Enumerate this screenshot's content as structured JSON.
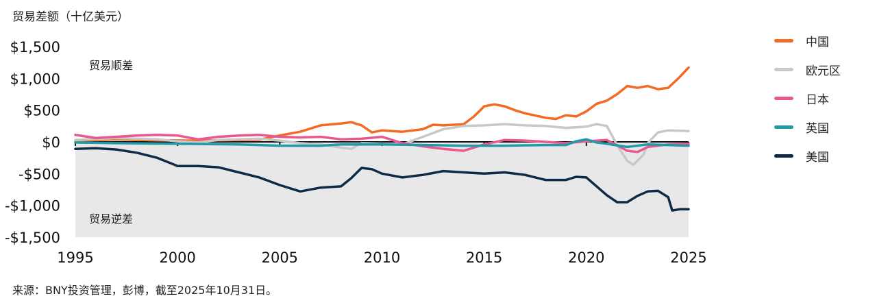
{
  "header": {
    "title": "贸易差额（十亿美元）"
  },
  "footer": {
    "source": "来源：BNY投资管理，彭博，截至2025年10月31日。"
  },
  "chart_data": {
    "type": "line",
    "title": "贸易差额（十亿美元）",
    "xlabel": "",
    "ylabel": "",
    "xlim": [
      1995,
      2025
    ],
    "ylim": [
      -1500,
      1500
    ],
    "x_ticks": [
      "1995",
      "2000",
      "2005",
      "2010",
      "2015",
      "2020",
      "2025"
    ],
    "y_ticks": [
      {
        "value": 1500,
        "label": "$1,500"
      },
      {
        "value": 1000,
        "label": "$1,000"
      },
      {
        "value": 500,
        "label": "$500"
      },
      {
        "value": 0,
        "label": "$0"
      },
      {
        "value": -500,
        "label": "-$500"
      },
      {
        "value": -1000,
        "label": "-$1,000"
      },
      {
        "value": -1500,
        "label": "-$1,500"
      }
    ],
    "annotations": {
      "surplus": "贸易顺差",
      "deficit": "贸易逆差"
    },
    "grid": false,
    "legend_position": "right",
    "series": [
      {
        "name": "中国",
        "color": "#F26B24",
        "points": [
          [
            1995,
            20
          ],
          [
            1997,
            40
          ],
          [
            1999,
            25
          ],
          [
            2001,
            20
          ],
          [
            2003,
            30
          ],
          [
            2004,
            35
          ],
          [
            2005,
            100
          ],
          [
            2006,
            160
          ],
          [
            2007,
            260
          ],
          [
            2008,
            290
          ],
          [
            2008.5,
            310
          ],
          [
            2009,
            260
          ],
          [
            2009.5,
            150
          ],
          [
            2010,
            180
          ],
          [
            2011,
            160
          ],
          [
            2012,
            200
          ],
          [
            2012.5,
            270
          ],
          [
            2013,
            260
          ],
          [
            2014,
            280
          ],
          [
            2014.5,
            400
          ],
          [
            2015,
            560
          ],
          [
            2015.5,
            590
          ],
          [
            2016,
            560
          ],
          [
            2016.5,
            500
          ],
          [
            2017,
            450
          ],
          [
            2018,
            380
          ],
          [
            2018.5,
            360
          ],
          [
            2019,
            420
          ],
          [
            2019.5,
            400
          ],
          [
            2020,
            480
          ],
          [
            2020.5,
            600
          ],
          [
            2021,
            650
          ],
          [
            2021.5,
            750
          ],
          [
            2022,
            880
          ],
          [
            2022.5,
            850
          ],
          [
            2023,
            880
          ],
          [
            2023.5,
            830
          ],
          [
            2024,
            850
          ],
          [
            2024.5,
            1000
          ],
          [
            2025,
            1170
          ]
        ]
      },
      {
        "name": "欧元区",
        "color": "#C8C8C8",
        "points": [
          [
            1995,
            30
          ],
          [
            1997,
            60
          ],
          [
            1999,
            40
          ],
          [
            2000,
            10
          ],
          [
            2001,
            -10
          ],
          [
            2002,
            30
          ],
          [
            2003,
            40
          ],
          [
            2004,
            50
          ],
          [
            2005,
            20
          ],
          [
            2006,
            -20
          ],
          [
            2007,
            -40
          ],
          [
            2008,
            -90
          ],
          [
            2008.5,
            -110
          ],
          [
            2009,
            -20
          ],
          [
            2010,
            -30
          ],
          [
            2011,
            -40
          ],
          [
            2012,
            80
          ],
          [
            2013,
            200
          ],
          [
            2014,
            250
          ],
          [
            2015,
            260
          ],
          [
            2016,
            280
          ],
          [
            2017,
            260
          ],
          [
            2018,
            250
          ],
          [
            2019,
            220
          ],
          [
            2020,
            240
          ],
          [
            2020.5,
            280
          ],
          [
            2021,
            250
          ],
          [
            2021.5,
            -50
          ],
          [
            2022,
            -300
          ],
          [
            2022.3,
            -360
          ],
          [
            2022.8,
            -200
          ],
          [
            2023,
            -20
          ],
          [
            2023.5,
            150
          ],
          [
            2024,
            180
          ],
          [
            2025,
            170
          ]
        ]
      },
      {
        "name": "日本",
        "color": "#E8588E",
        "points": [
          [
            1995,
            110
          ],
          [
            1996,
            60
          ],
          [
            1997,
            80
          ],
          [
            1998,
            100
          ],
          [
            1999,
            110
          ],
          [
            2000,
            100
          ],
          [
            2001,
            40
          ],
          [
            2002,
            80
          ],
          [
            2003,
            100
          ],
          [
            2004,
            110
          ],
          [
            2005,
            80
          ],
          [
            2006,
            70
          ],
          [
            2007,
            80
          ],
          [
            2008,
            40
          ],
          [
            2009,
            50
          ],
          [
            2010,
            80
          ],
          [
            2011,
            -20
          ],
          [
            2012,
            -70
          ],
          [
            2013,
            -110
          ],
          [
            2014,
            -140
          ],
          [
            2015,
            -40
          ],
          [
            2016,
            30
          ],
          [
            2017,
            20
          ],
          [
            2018,
            0
          ],
          [
            2019,
            -20
          ],
          [
            2020,
            10
          ],
          [
            2021,
            30
          ],
          [
            2022,
            -140
          ],
          [
            2022.5,
            -160
          ],
          [
            2023,
            -80
          ],
          [
            2024,
            -40
          ],
          [
            2025,
            -30
          ]
        ]
      },
      {
        "name": "英国",
        "color": "#1F9AA6",
        "points": [
          [
            1995,
            -10
          ],
          [
            1997,
            -20
          ],
          [
            2000,
            -30
          ],
          [
            2003,
            -40
          ],
          [
            2005,
            -60
          ],
          [
            2007,
            -60
          ],
          [
            2008,
            -40
          ],
          [
            2010,
            -40
          ],
          [
            2012,
            -50
          ],
          [
            2014,
            -60
          ],
          [
            2016,
            -60
          ],
          [
            2018,
            -50
          ],
          [
            2019,
            -50
          ],
          [
            2019.5,
            10
          ],
          [
            2020,
            40
          ],
          [
            2020.5,
            -10
          ],
          [
            2021,
            -30
          ],
          [
            2022,
            -80
          ],
          [
            2023,
            -40
          ],
          [
            2024,
            -50
          ],
          [
            2025,
            -60
          ]
        ]
      },
      {
        "name": "美国",
        "color": "#0E2A47",
        "points": [
          [
            1995,
            -110
          ],
          [
            1996,
            -100
          ],
          [
            1997,
            -120
          ],
          [
            1998,
            -170
          ],
          [
            1999,
            -250
          ],
          [
            2000,
            -380
          ],
          [
            2001,
            -380
          ],
          [
            2002,
            -400
          ],
          [
            2003,
            -480
          ],
          [
            2004,
            -560
          ],
          [
            2005,
            -680
          ],
          [
            2006,
            -780
          ],
          [
            2007,
            -720
          ],
          [
            2008,
            -700
          ],
          [
            2008.5,
            -570
          ],
          [
            2009,
            -410
          ],
          [
            2009.5,
            -430
          ],
          [
            2010,
            -500
          ],
          [
            2011,
            -560
          ],
          [
            2012,
            -520
          ],
          [
            2013,
            -460
          ],
          [
            2014,
            -480
          ],
          [
            2015,
            -500
          ],
          [
            2016,
            -480
          ],
          [
            2017,
            -520
          ],
          [
            2018,
            -600
          ],
          [
            2019,
            -600
          ],
          [
            2019.5,
            -550
          ],
          [
            2020,
            -560
          ],
          [
            2020.5,
            -700
          ],
          [
            2021,
            -840
          ],
          [
            2021.5,
            -950
          ],
          [
            2022,
            -950
          ],
          [
            2022.5,
            -850
          ],
          [
            2023,
            -780
          ],
          [
            2023.5,
            -770
          ],
          [
            2024,
            -870
          ],
          [
            2024.2,
            -1080
          ],
          [
            2024.6,
            -1060
          ],
          [
            2025,
            -1060
          ]
        ]
      }
    ]
  }
}
